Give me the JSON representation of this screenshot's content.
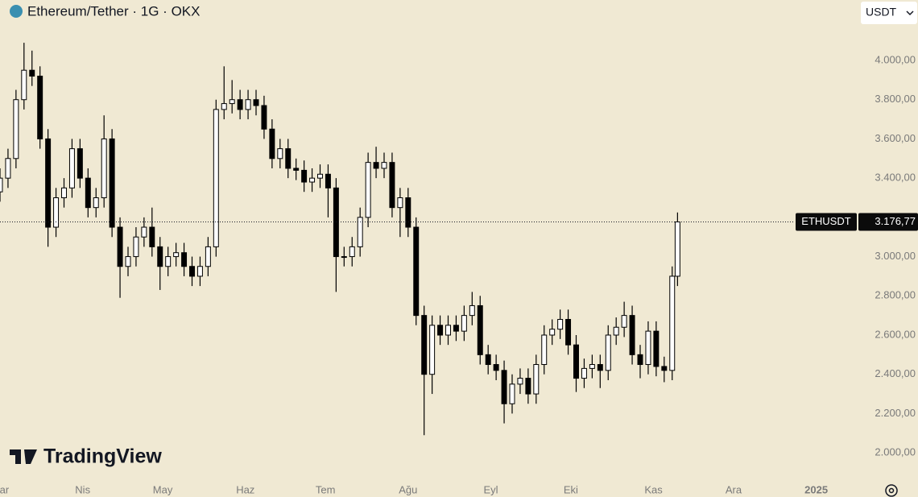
{
  "chart_data": {
    "type": "candlestick",
    "title": "Ethereum/Tether · 1G · OKX",
    "x": [
      0,
      3,
      6,
      9,
      12,
      15,
      18,
      21,
      24,
      27,
      30,
      33,
      36,
      39,
      42,
      45,
      48,
      51,
      54,
      57,
      60,
      63,
      66,
      69,
      72,
      75,
      78,
      81,
      84,
      87,
      90,
      93,
      96,
      99,
      102,
      105,
      108,
      111,
      114,
      117,
      120,
      123,
      126,
      129,
      132,
      135,
      138,
      141,
      144,
      147,
      150,
      153,
      156,
      159,
      162,
      165,
      168,
      171,
      174,
      177,
      180,
      183,
      186,
      189,
      192,
      195,
      198,
      201,
      204,
      207,
      210,
      213,
      216,
      219,
      222,
      225,
      228,
      231,
      234,
      237,
      240,
      243,
      246,
      249,
      252,
      254
    ],
    "open": [
      3330,
      3400,
      3500,
      3800,
      3950,
      3920,
      3600,
      3150,
      3300,
      3350,
      3550,
      3400,
      3250,
      3300,
      3600,
      3150,
      2950,
      3000,
      3100,
      3150,
      3050,
      2950,
      3000,
      3020,
      2950,
      2900,
      2950,
      3050,
      3750,
      3780,
      3800,
      3750,
      3800,
      3770,
      3650,
      3500,
      3550,
      3450,
      3440,
      3380,
      3400,
      3420,
      3350,
      3000,
      3000,
      3050,
      3200,
      3480,
      3450,
      3480,
      3250,
      3300,
      3150,
      2700,
      2400,
      2650,
      2600,
      2650,
      2620,
      2700,
      2750,
      2500,
      2450,
      2420,
      2250,
      2350,
      2380,
      2300,
      2450,
      2600,
      2630,
      2680,
      2550,
      2380,
      2430,
      2450,
      2420,
      2600,
      2640,
      2700,
      2500,
      2450,
      2620,
      2440,
      2420,
      2900
    ],
    "high": [
      3450,
      3550,
      3850,
      4090,
      4050,
      3970,
      3650,
      3350,
      3400,
      3600,
      3600,
      3450,
      3350,
      3720,
      3650,
      3200,
      3050,
      3150,
      3200,
      3250,
      3100,
      3050,
      3070,
      3070,
      3000,
      3000,
      3100,
      3800,
      3970,
      3900,
      3850,
      3850,
      3850,
      3820,
      3700,
      3600,
      3600,
      3500,
      3490,
      3450,
      3470,
      3470,
      3400,
      3050,
      3100,
      3250,
      3530,
      3560,
      3530,
      3530,
      3350,
      3350,
      3200,
      2750,
      2700,
      2700,
      2700,
      2700,
      2750,
      2820,
      2800,
      2550,
      2500,
      2470,
      2400,
      2430,
      2430,
      2500,
      2650,
      2680,
      2730,
      2730,
      2600,
      2480,
      2500,
      2500,
      2650,
      2690,
      2770,
      2750,
      2550,
      2670,
      2670,
      2490,
      2950,
      3225
    ],
    "low": [
      3280,
      3350,
      3450,
      3750,
      3870,
      3550,
      3050,
      3100,
      3250,
      3300,
      3350,
      3200,
      3200,
      3250,
      3100,
      2790,
      2900,
      2950,
      3050,
      3000,
      2830,
      2900,
      2950,
      2900,
      2850,
      2850,
      2900,
      3000,
      3700,
      3730,
      3700,
      3700,
      3720,
      3600,
      3450,
      3450,
      3400,
      3390,
      3330,
      3330,
      3350,
      3200,
      2820,
      2950,
      2950,
      3000,
      3150,
      3400,
      3400,
      3200,
      3100,
      3100,
      2650,
      2090,
      2300,
      2550,
      2550,
      2570,
      2570,
      2650,
      2450,
      2400,
      2370,
      2150,
      2200,
      2300,
      2250,
      2250,
      2400,
      2550,
      2580,
      2500,
      2310,
      2330,
      2380,
      2330,
      2370,
      2550,
      2590,
      2450,
      2380,
      2400,
      2390,
      2360,
      2370,
      2850
    ],
    "close": [
      3400,
      3500,
      3800,
      3950,
      3920,
      3600,
      3150,
      3300,
      3350,
      3550,
      3400,
      3250,
      3300,
      3600,
      3150,
      2950,
      3000,
      3100,
      3150,
      3050,
      2950,
      3000,
      3020,
      2950,
      2900,
      2950,
      3050,
      3750,
      3780,
      3800,
      3750,
      3800,
      3770,
      3650,
      3500,
      3550,
      3450,
      3440,
      3380,
      3400,
      3420,
      3350,
      3000,
      3000,
      3050,
      3200,
      3480,
      3450,
      3480,
      3250,
      3300,
      3150,
      2700,
      2400,
      2650,
      2600,
      2650,
      2620,
      2700,
      2750,
      2500,
      2450,
      2420,
      2250,
      2350,
      2380,
      2300,
      2450,
      2600,
      2630,
      2680,
      2550,
      2380,
      2430,
      2450,
      2420,
      2600,
      2640,
      2700,
      2500,
      2450,
      2620,
      2440,
      2420,
      2900,
      3176.77
    ],
    "up_color": "#ffffff",
    "down_color": "#000000",
    "wick_color": "#000000",
    "xlim": [
      0,
      320
    ],
    "ylim": [
      1865,
      4308
    ],
    "yticks": [
      {
        "value": 2000,
        "label": "2.000,00"
      },
      {
        "value": 2200,
        "label": "2.200,00"
      },
      {
        "value": 2400,
        "label": "2.400,00"
      },
      {
        "value": 2600,
        "label": "2.600,00"
      },
      {
        "value": 2800,
        "label": "2.800,00"
      },
      {
        "value": 3000,
        "label": "3.000,00"
      },
      {
        "value": 3200,
        "label": "3.200,00"
      },
      {
        "value": 3400,
        "label": "3.400,00"
      },
      {
        "value": 3600,
        "label": "3.600,00"
      },
      {
        "value": 3800,
        "label": "3.800,00"
      },
      {
        "value": 4000,
        "label": "4.000,00"
      }
    ],
    "xticks": [
      {
        "value": 0,
        "label": "Mar"
      },
      {
        "value": 31,
        "label": "Nis"
      },
      {
        "value": 61,
        "label": "May"
      },
      {
        "value": 92,
        "label": "Haz"
      },
      {
        "value": 122,
        "label": "Tem"
      },
      {
        "value": 153,
        "label": "Ağu"
      },
      {
        "value": 184,
        "label": "Eyl"
      },
      {
        "value": 214,
        "label": "Eki"
      },
      {
        "value": 245,
        "label": "Kas"
      },
      {
        "value": 275,
        "label": "Ara"
      },
      {
        "value": 306,
        "label": "2025"
      }
    ],
    "grid": false,
    "price_line": {
      "symbol": "ETHUSDT",
      "value": 3176.77,
      "label": "3.176,77"
    }
  },
  "ui": {
    "currency": "USDT",
    "watermark": "TradingView"
  }
}
